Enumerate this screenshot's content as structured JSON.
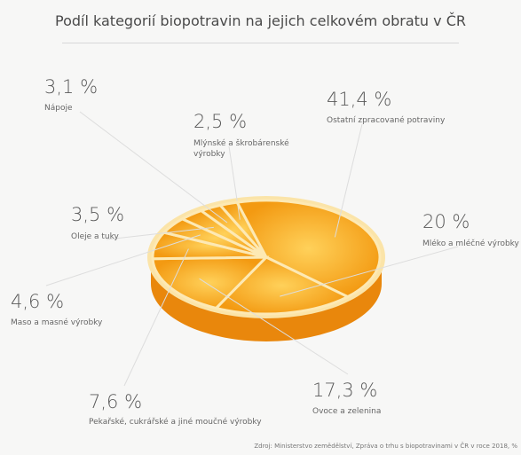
{
  "chart_data": {
    "type": "pie",
    "title": "Podíl kategorií biopotravin na jejich celkovém obratu v ČR",
    "categories": [
      "Nápoje",
      "Mlýnské a škrobárenské výrobky",
      "Ostatní zpracované potraviny",
      "Mléko a mléčné výrobky",
      "Ovoce a zelenina",
      "Pekařské, cukrářské a jiné moučné výrobky",
      "Maso a masné výrobky",
      "Oleje a tuky"
    ],
    "values": [
      3.1,
      2.5,
      41.4,
      20,
      17.3,
      7.6,
      4.6,
      3.5
    ],
    "value_labels": [
      "3,1 %",
      "2,5 %",
      "41,4 %",
      "20 %",
      "17,3 %",
      "7,6 %",
      "4,6 %",
      "3,5 %"
    ],
    "color": "#f6a21c",
    "source": "Zdroj: Ministerstvo zemědělství, Zpráva o trhu s biopotravinami v ČR v roce 2018, %"
  }
}
